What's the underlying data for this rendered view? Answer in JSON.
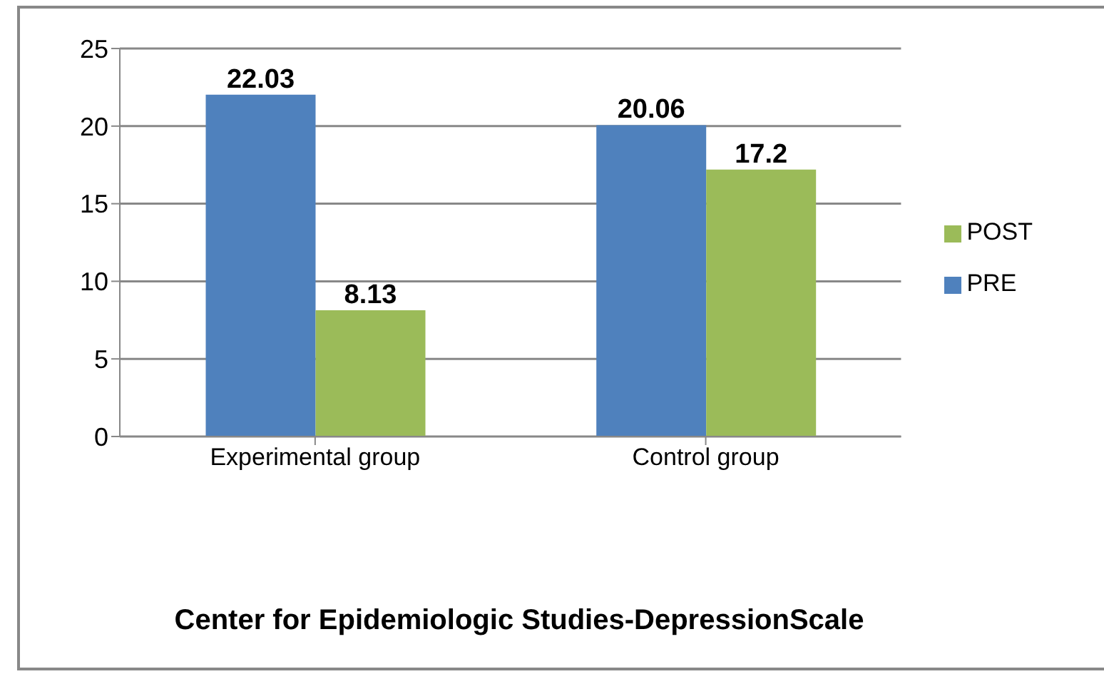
{
  "chart_data": {
    "type": "bar",
    "title": "Center for Epidemiologic Studies-DepressionScale",
    "categories": [
      "Experimental group",
      "Control group"
    ],
    "series": [
      {
        "name": "PRE",
        "color": "#4f81bd",
        "values": [
          22.03,
          20.06
        ]
      },
      {
        "name": "POST",
        "color": "#9bbb59",
        "values": [
          8.13,
          17.2
        ]
      }
    ],
    "ylim": [
      0,
      25
    ],
    "yticks": [
      0,
      5,
      10,
      15,
      20,
      25
    ],
    "grid": "y",
    "legend": "right",
    "data_labels": true
  }
}
